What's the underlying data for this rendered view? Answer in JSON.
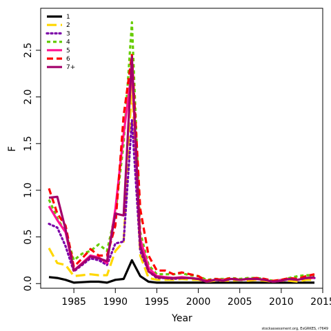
{
  "chart_data": {
    "type": "line",
    "title": "",
    "xlabel": "Year",
    "ylabel": "F",
    "xlim": [
      1981,
      2015
    ],
    "ylim": [
      -0.05,
      2.95
    ],
    "x_ticks": [
      1985,
      1990,
      1995,
      2000,
      2005,
      2010,
      2015
    ],
    "y_ticks": [
      0.0,
      0.5,
      1.0,
      1.5,
      2.0,
      2.5
    ],
    "x_tick_labels": [
      "1985",
      "1990",
      "1995",
      "2000",
      "2005",
      "2010",
      "2015"
    ],
    "y_tick_labels": [
      "0.0",
      "0.5",
      "1.0",
      "1.5",
      "2.0",
      "2.5"
    ],
    "legend_position": "top-left",
    "credit": "stockassessment.org, EsGRKES, r7649",
    "x": [
      1982,
      1983,
      1984,
      1985,
      1986,
      1987,
      1988,
      1989,
      1990,
      1991,
      1992,
      1993,
      1994,
      1995,
      1996,
      1997,
      1998,
      1999,
      2000,
      2001,
      2002,
      2003,
      2004,
      2005,
      2006,
      2007,
      2008,
      2009,
      2010,
      2011,
      2012,
      2013,
      2014
    ],
    "series": [
      {
        "name": "1",
        "color": "#000000",
        "dash": "solid",
        "values": [
          0.07,
          0.06,
          0.04,
          0.01,
          0.015,
          0.02,
          0.02,
          0.01,
          0.04,
          0.05,
          0.25,
          0.08,
          0.02,
          0.01,
          0.01,
          0.01,
          0.01,
          0.01,
          0.01,
          0.01,
          0.01,
          0.01,
          0.01,
          0.01,
          0.01,
          0.01,
          0.01,
          0.01,
          0.01,
          0.01,
          0.01,
          0.01,
          0.01
        ]
      },
      {
        "name": "2",
        "color": "#FFD700",
        "dash": "long",
        "values": [
          0.38,
          0.22,
          0.2,
          0.08,
          0.09,
          0.1,
          0.09,
          0.09,
          0.35,
          0.45,
          2.15,
          0.3,
          0.06,
          0.04,
          0.04,
          0.04,
          0.05,
          0.04,
          0.04,
          0.02,
          0.03,
          0.03,
          0.03,
          0.04,
          0.03,
          0.04,
          0.03,
          0.02,
          0.03,
          0.03,
          0.02,
          0.04,
          0.04
        ]
      },
      {
        "name": "3",
        "color": "#7B00A8",
        "dash": "dotted",
        "values": [
          0.64,
          0.6,
          0.4,
          0.13,
          0.2,
          0.27,
          0.25,
          0.2,
          0.43,
          0.45,
          1.75,
          0.35,
          0.13,
          0.06,
          0.06,
          0.05,
          0.06,
          0.06,
          0.05,
          0.02,
          0.04,
          0.04,
          0.05,
          0.04,
          0.05,
          0.05,
          0.04,
          0.02,
          0.03,
          0.05,
          0.04,
          0.06,
          0.06
        ]
      },
      {
        "name": "4",
        "color": "#66CC00",
        "dash": "short",
        "values": [
          0.9,
          0.7,
          0.55,
          0.25,
          0.32,
          0.35,
          0.42,
          0.35,
          0.75,
          1.5,
          2.8,
          0.55,
          0.2,
          0.1,
          0.1,
          0.1,
          0.11,
          0.09,
          0.08,
          0.04,
          0.05,
          0.05,
          0.06,
          0.05,
          0.06,
          0.06,
          0.05,
          0.03,
          0.04,
          0.06,
          0.08,
          0.09,
          0.09
        ]
      },
      {
        "name": "5",
        "color": "#FF1493",
        "dash": "solid",
        "values": [
          0.83,
          0.68,
          0.55,
          0.14,
          0.22,
          0.3,
          0.28,
          0.22,
          0.8,
          1.6,
          2.3,
          0.48,
          0.17,
          0.08,
          0.07,
          0.06,
          0.07,
          0.06,
          0.05,
          0.03,
          0.04,
          0.04,
          0.05,
          0.04,
          0.05,
          0.05,
          0.04,
          0.02,
          0.04,
          0.05,
          0.04,
          0.06,
          0.06
        ]
      },
      {
        "name": "6",
        "color": "#FF0000",
        "dash": "dash",
        "values": [
          1.02,
          0.75,
          0.62,
          0.18,
          0.27,
          0.37,
          0.3,
          0.3,
          0.62,
          1.8,
          2.45,
          0.8,
          0.3,
          0.14,
          0.14,
          0.1,
          0.12,
          0.1,
          0.08,
          0.03,
          0.05,
          0.04,
          0.06,
          0.04,
          0.05,
          0.06,
          0.05,
          0.03,
          0.04,
          0.06,
          0.05,
          0.08,
          0.1
        ]
      },
      {
        "name": "7+",
        "color": "#A3006B",
        "dash": "solid",
        "values": [
          0.92,
          0.93,
          0.58,
          0.14,
          0.21,
          0.29,
          0.27,
          0.24,
          0.75,
          0.73,
          2.43,
          0.4,
          0.13,
          0.07,
          0.06,
          0.06,
          0.06,
          0.06,
          0.05,
          0.02,
          0.04,
          0.03,
          0.05,
          0.04,
          0.05,
          0.05,
          0.04,
          0.02,
          0.03,
          0.05,
          0.04,
          0.06,
          0.07
        ]
      }
    ]
  }
}
